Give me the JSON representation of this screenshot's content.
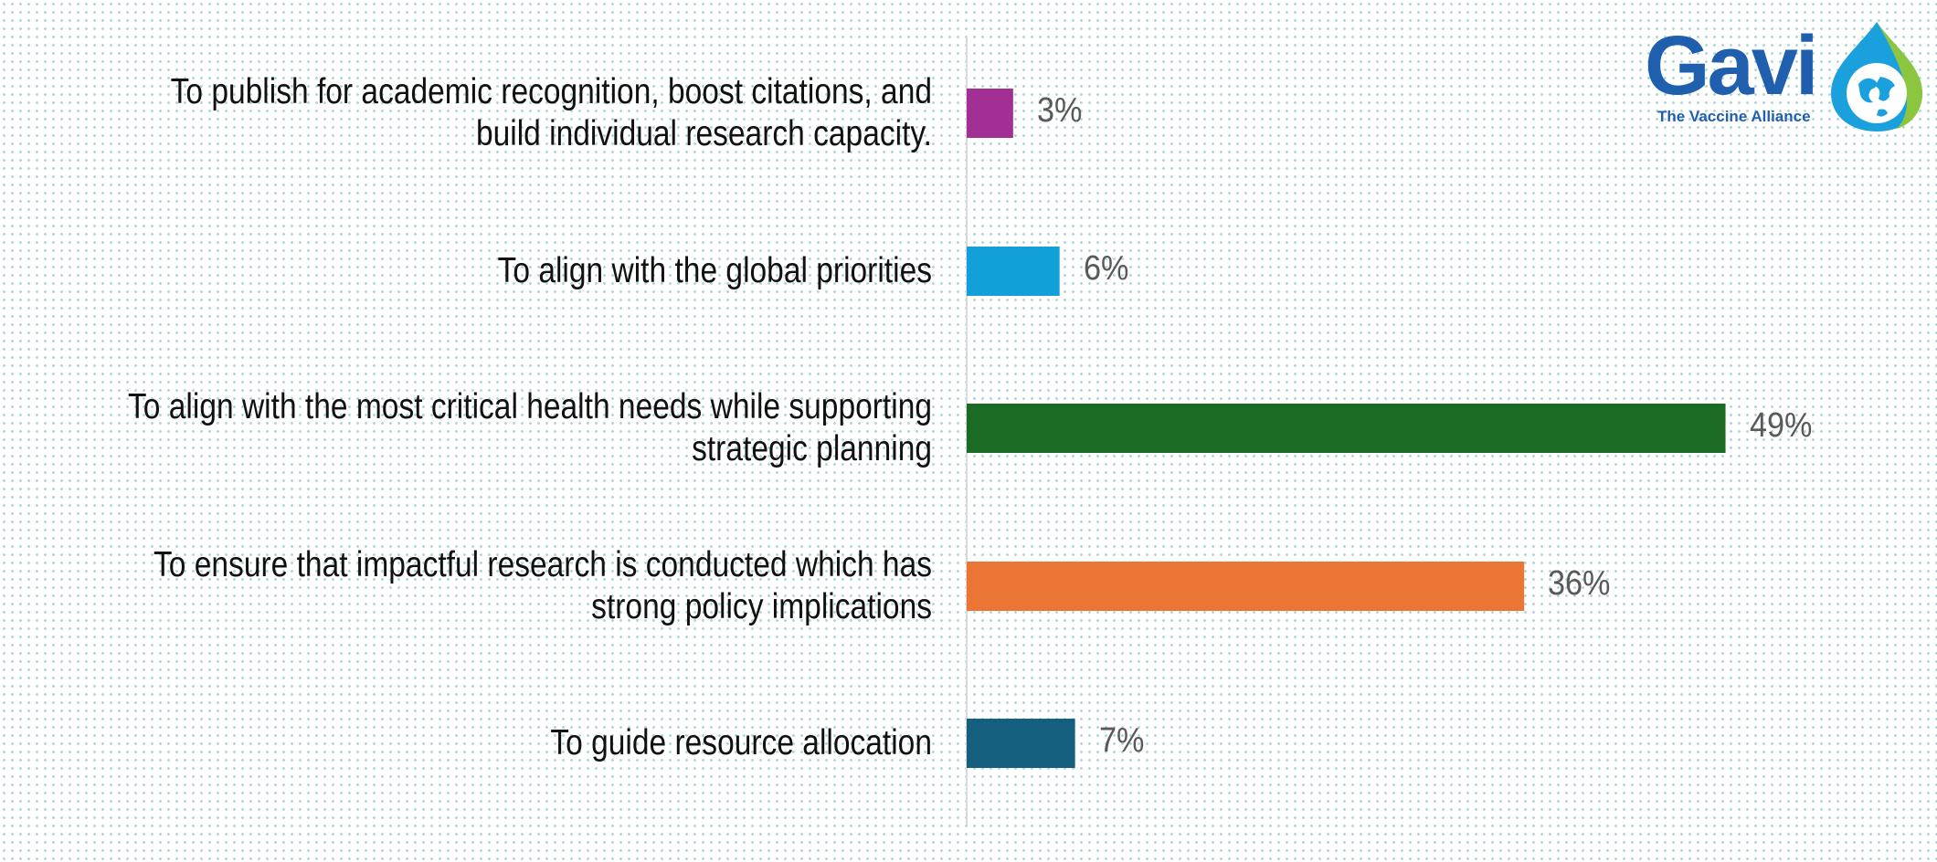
{
  "chart_data": {
    "type": "bar",
    "orientation": "horizontal",
    "categories": [
      [
        "To publish for academic recognition, boost citations, and",
        "build individual research capacity."
      ],
      [
        "To align with the global priorities"
      ],
      [
        "To align with the most critical health needs while supporting",
        "strategic planning"
      ],
      [
        "To ensure that impactful research is conducted which has",
        "strong policy implications"
      ],
      [
        "To guide resource allocation"
      ]
    ],
    "values": [
      3,
      6,
      49,
      36,
      7
    ],
    "value_labels": [
      "3%",
      "6%",
      "49%",
      "36%",
      "7%"
    ],
    "colors": [
      "#a22f93",
      "#13a0d8",
      "#1c6b24",
      "#ea7535",
      "#16607f"
    ],
    "xlim": [
      0,
      100
    ],
    "grid": false,
    "legend": "none"
  },
  "logo": {
    "name": "gavi-logo",
    "wordmark": "Gavi",
    "tagline": "The Vaccine Alliance",
    "colors": {
      "text": "#1f5fae",
      "drop": "#1aa0dd",
      "leaf": "#8cc63f"
    }
  }
}
